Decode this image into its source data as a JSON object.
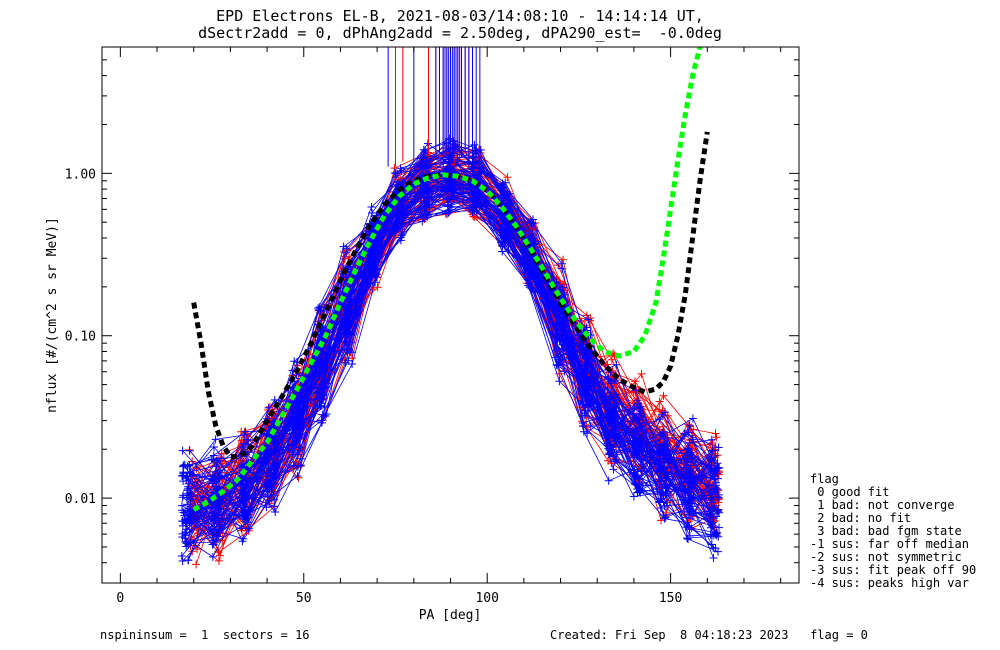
{
  "title": {
    "line1": "EPD Electrons EL-B, 2021-08-03/14:08:10 - 14:14:14 UT,",
    "line2": "dSectr2add = 0, dPhAng2add = 2.50deg, dPA290_est=  -0.0deg"
  },
  "chart_data": {
    "type": "line",
    "xlabel": "PA [deg]",
    "ylabel": "nflux [#/(cm^2 s sr MeV)]",
    "xlim": [
      -5,
      185
    ],
    "ylim": [
      0.003,
      6.0
    ],
    "yscale": "log",
    "x_ticks": [
      0,
      50,
      100,
      150
    ],
    "x_tick_labels": [
      "0",
      "50",
      "100",
      "150"
    ],
    "y_ticks": [
      0.01,
      0.1,
      1.0
    ],
    "y_tick_labels": [
      "0.01",
      "0.10",
      "1.00"
    ],
    "grid": false,
    "bundles": [
      {
        "color": "#ff0000",
        "count": 60,
        "profile_x": [
          20,
          27,
          34,
          41,
          48,
          55,
          62,
          69,
          76,
          83,
          90,
          97,
          105,
          112,
          120,
          127,
          134,
          141,
          148,
          155,
          162
        ],
        "profile_y": [
          0.0085,
          0.009,
          0.012,
          0.018,
          0.03,
          0.065,
          0.15,
          0.32,
          0.62,
          0.85,
          0.92,
          0.85,
          0.55,
          0.32,
          0.13,
          0.06,
          0.035,
          0.025,
          0.018,
          0.014,
          0.011
        ]
      },
      {
        "color": "#0000ff",
        "count": 75,
        "profile_x": [
          18,
          26,
          34,
          41,
          48,
          55,
          62,
          69,
          76,
          83,
          90,
          97,
          105,
          112,
          120,
          127,
          134,
          141,
          148,
          155,
          162
        ],
        "profile_y": [
          0.009,
          0.01,
          0.012,
          0.018,
          0.032,
          0.07,
          0.16,
          0.36,
          0.65,
          0.88,
          0.95,
          0.88,
          0.55,
          0.3,
          0.12,
          0.055,
          0.03,
          0.02,
          0.016,
          0.013,
          0.01
        ]
      }
    ],
    "spikes": [
      {
        "color": "#ff0000",
        "x": [
          75,
          77,
          84,
          86,
          87,
          88,
          89,
          90,
          91,
          92,
          93,
          94,
          95,
          96
        ]
      },
      {
        "color": "#0000ff",
        "x": [
          73,
          80,
          86,
          87,
          88,
          88.5,
          89,
          89.5,
          90,
          90.5,
          91,
          91.5,
          92,
          92.5,
          93,
          94,
          95,
          96,
          97,
          98
        ]
      }
    ],
    "fit_curves": [
      {
        "color": "#000000",
        "x": [
          20,
          22,
          24,
          26,
          28,
          30,
          32,
          34,
          36,
          38,
          40,
          44,
          48,
          52,
          56,
          60,
          64,
          68,
          72,
          76,
          80,
          84,
          88,
          92,
          96,
          100,
          104,
          108,
          112,
          116,
          120,
          124,
          128,
          132,
          136,
          140,
          143,
          146,
          148,
          150,
          152,
          154,
          156,
          158,
          160
        ],
        "y": [
          0.16,
          0.09,
          0.045,
          0.028,
          0.021,
          0.018,
          0.018,
          0.019,
          0.021,
          0.025,
          0.03,
          0.042,
          0.06,
          0.09,
          0.14,
          0.22,
          0.33,
          0.48,
          0.64,
          0.79,
          0.9,
          0.96,
          0.98,
          0.96,
          0.9,
          0.78,
          0.62,
          0.46,
          0.33,
          0.23,
          0.16,
          0.115,
          0.085,
          0.066,
          0.054,
          0.048,
          0.045,
          0.047,
          0.052,
          0.065,
          0.1,
          0.18,
          0.4,
          0.9,
          1.8
        ]
      },
      {
        "color": "#00ff00",
        "x": [
          20,
          24,
          28,
          32,
          36,
          40,
          44,
          48,
          52,
          56,
          60,
          64,
          68,
          72,
          76,
          80,
          84,
          88,
          92,
          96,
          100,
          104,
          108,
          112,
          116,
          120,
          124,
          128,
          132,
          136,
          140,
          143,
          146,
          148,
          150,
          152,
          154,
          156,
          158
        ],
        "y": [
          0.0085,
          0.0095,
          0.011,
          0.013,
          0.017,
          0.022,
          0.032,
          0.046,
          0.068,
          0.1,
          0.16,
          0.25,
          0.38,
          0.55,
          0.72,
          0.86,
          0.94,
          0.98,
          0.96,
          0.9,
          0.78,
          0.62,
          0.47,
          0.34,
          0.24,
          0.17,
          0.125,
          0.096,
          0.08,
          0.075,
          0.08,
          0.1,
          0.16,
          0.3,
          0.6,
          1.2,
          2.3,
          4.0,
          6.0
        ]
      }
    ]
  },
  "legend": {
    "header": "flag",
    "items": [
      " 0 good fit",
      " 1 bad: not converge",
      " 2 bad: no fit",
      " 3 bad: bad fgm state",
      "-1 sus: far off median",
      "-2 sus: not symmetric",
      "-3 sus: fit peak off 90",
      "-4 sus: peaks high var"
    ]
  },
  "footer": {
    "left": "nspininsum =  1  sectors = 16",
    "right": "Created: Fri Sep  8 04:18:23 2023   flag = 0"
  }
}
